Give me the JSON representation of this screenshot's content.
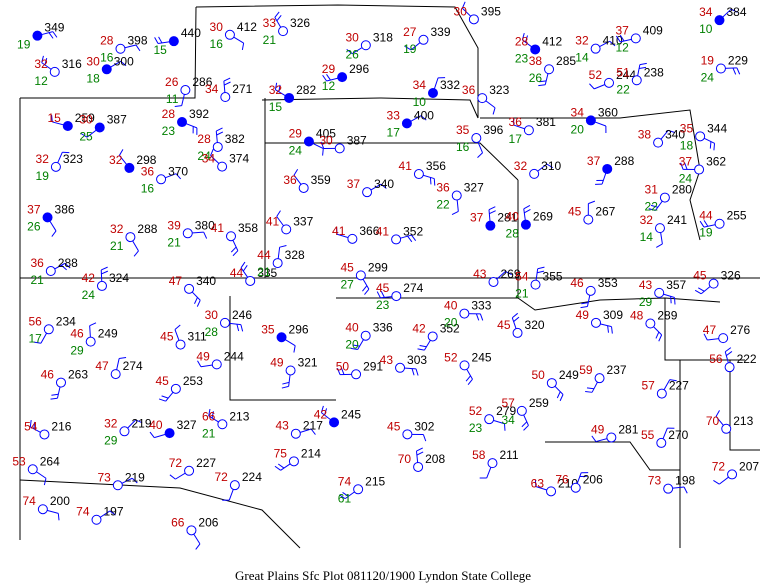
{
  "caption": "Great Plains Sfc Plot 081120/1900  Lyndon State College",
  "colors": {
    "temperature": "#c00000",
    "dewpoint": "#008000",
    "station": "#0000ff",
    "pressure": "#000000",
    "border": "#000000"
  },
  "stations": [
    {
      "p": "349",
      "t": "",
      "td": "19",
      "sky": "full"
    },
    {
      "p": "398",
      "t": "28",
      "td": "16",
      "sky": "empty"
    },
    {
      "p": "440",
      "t": "",
      "td": "15",
      "sky": "full"
    },
    {
      "p": "412",
      "t": "30",
      "td": "16",
      "sky": "empty"
    },
    {
      "p": "326",
      "t": "33",
      "td": "21",
      "sky": "empty"
    },
    {
      "p": "318",
      "t": "30",
      "td": "26",
      "sky": "empty"
    },
    {
      "p": "339",
      "t": "27",
      "td": "19",
      "sky": "empty"
    },
    {
      "p": "395",
      "t": "30",
      "td": "",
      "sky": "empty"
    },
    {
      "p": "412",
      "t": "28",
      "td": "23",
      "sky": "full"
    },
    {
      "p": "410",
      "t": "32",
      "td": "14",
      "sky": "empty"
    },
    {
      "p": "409",
      "t": "37",
      "td": "12",
      "sky": "empty"
    },
    {
      "p": "384",
      "t": "34",
      "td": "10",
      "sky": "full"
    },
    {
      "p": "316",
      "t": "32",
      "td": "12",
      "sky": "empty"
    },
    {
      "p": "300",
      "t": "30",
      "td": "18",
      "sky": "full"
    },
    {
      "p": "286",
      "t": "26",
      "td": "11",
      "sky": "empty"
    },
    {
      "p": "271",
      "t": "34",
      "td": "",
      "sky": "empty"
    },
    {
      "p": "282",
      "t": "32",
      "td": "15",
      "sky": "full"
    },
    {
      "p": "296",
      "t": "29",
      "td": "12",
      "sky": "full"
    },
    {
      "p": "332",
      "t": "34",
      "td": "10",
      "sky": "full"
    },
    {
      "p": "323",
      "t": "36",
      "td": "",
      "sky": "empty"
    },
    {
      "p": "285",
      "t": "38",
      "td": "26",
      "sky": "empty"
    },
    {
      "p": "244",
      "t": "52",
      "td": "",
      "sky": "empty"
    },
    {
      "p": "238",
      "t": "51",
      "td": "22",
      "sky": "empty"
    },
    {
      "p": "229",
      "t": "19",
      "td": "24",
      "sky": "empty"
    },
    {
      "p": "259",
      "t": "15",
      "td": "",
      "sky": "full"
    },
    {
      "p": "387",
      "t": "30",
      "td": "25",
      "sky": "full"
    },
    {
      "p": "392",
      "t": "28",
      "td": "23",
      "sky": "full"
    },
    {
      "p": "382",
      "t": "28",
      "td": "24",
      "sky": "empty"
    },
    {
      "p": "405",
      "t": "29",
      "td": "24",
      "sky": "full"
    },
    {
      "p": "387",
      "t": "30",
      "td": "",
      "sky": "empty"
    },
    {
      "p": "400",
      "t": "33",
      "td": "17",
      "sky": "full"
    },
    {
      "p": "396",
      "t": "35",
      "td": "16",
      "sky": "empty"
    },
    {
      "p": "381",
      "t": "36",
      "td": "17",
      "sky": "empty"
    },
    {
      "p": "360",
      "t": "34",
      "td": "20",
      "sky": "full"
    },
    {
      "p": "340",
      "t": "38",
      "td": "",
      "sky": "empty"
    },
    {
      "p": "344",
      "t": "35",
      "td": "18",
      "sky": "empty"
    },
    {
      "p": "323",
      "t": "32",
      "td": "19",
      "sky": "empty"
    },
    {
      "p": "298",
      "t": "32",
      "td": "",
      "sky": "full"
    },
    {
      "p": "370",
      "t": "36",
      "td": "16",
      "sky": "empty"
    },
    {
      "p": "374",
      "t": "34",
      "td": "",
      "sky": "empty"
    },
    {
      "p": "359",
      "t": "36",
      "td": "",
      "sky": "empty"
    },
    {
      "p": "340",
      "t": "37",
      "td": "",
      "sky": "empty"
    },
    {
      "p": "356",
      "t": "41",
      "td": "",
      "sky": "empty"
    },
    {
      "p": "327",
      "t": "36",
      "td": "22",
      "sky": "empty"
    },
    {
      "p": "310",
      "t": "32",
      "td": "",
      "sky": "empty"
    },
    {
      "p": "288",
      "t": "37",
      "td": "",
      "sky": "full"
    },
    {
      "p": "280",
      "t": "31",
      "td": "22",
      "sky": "empty"
    },
    {
      "p": "362",
      "t": "37",
      "td": "24",
      "sky": "empty"
    },
    {
      "p": "386",
      "t": "37",
      "td": "26",
      "sky": "full"
    },
    {
      "p": "288",
      "t": "32",
      "td": "21",
      "sky": "empty"
    },
    {
      "p": "380",
      "t": "39",
      "td": "21",
      "sky": "empty"
    },
    {
      "p": "358",
      "t": "41",
      "td": "",
      "sky": "empty"
    },
    {
      "p": "337",
      "t": "41",
      "td": "",
      "sky": "empty"
    },
    {
      "p": "366",
      "t": "41",
      "td": "",
      "sky": "empty"
    },
    {
      "p": "352",
      "t": "41",
      "td": "",
      "sky": "empty"
    },
    {
      "p": "281",
      "t": "37",
      "td": "",
      "sky": "full"
    },
    {
      "p": "269",
      "t": "40",
      "td": "28",
      "sky": "full"
    },
    {
      "p": "267",
      "t": "45",
      "td": "",
      "sky": "empty"
    },
    {
      "p": "241",
      "t": "32",
      "td": "14",
      "sky": "empty"
    },
    {
      "p": "255",
      "t": "44",
      "td": "19",
      "sky": "empty"
    },
    {
      "p": "288",
      "t": "36",
      "td": "21",
      "sky": "empty"
    },
    {
      "p": "324",
      "t": "42",
      "td": "24",
      "sky": "empty"
    },
    {
      "p": "340",
      "t": "47",
      "td": "",
      "sky": "empty"
    },
    {
      "p": "335",
      "t": "44",
      "td": "",
      "sky": "empty"
    },
    {
      "p": "328",
      "t": "44",
      "td": "21",
      "sky": "empty"
    },
    {
      "p": "299",
      "t": "45",
      "td": "27",
      "sky": "empty"
    },
    {
      "p": "274",
      "t": "45",
      "td": "23",
      "sky": "empty"
    },
    {
      "p": "269",
      "t": "43",
      "td": "",
      "sky": "empty"
    },
    {
      "p": "355",
      "t": "54",
      "td": "21",
      "sky": "empty"
    },
    {
      "p": "353",
      "t": "46",
      "td": "",
      "sky": "empty"
    },
    {
      "p": "357",
      "t": "43",
      "td": "29",
      "sky": "empty"
    },
    {
      "p": "326",
      "t": "45",
      "td": "",
      "sky": "empty"
    },
    {
      "p": "234",
      "t": "56",
      "td": "17",
      "sky": "empty"
    },
    {
      "p": "249",
      "t": "46",
      "td": "29",
      "sky": "empty"
    },
    {
      "p": "311",
      "t": "45",
      "td": "",
      "sky": "empty"
    },
    {
      "p": "246",
      "t": "30",
      "td": "28",
      "sky": "empty"
    },
    {
      "p": "296",
      "t": "35",
      "td": "",
      "sky": "full"
    },
    {
      "p": "336",
      "t": "40",
      "td": "20",
      "sky": "empty"
    },
    {
      "p": "352",
      "t": "42",
      "td": "",
      "sky": "empty"
    },
    {
      "p": "333",
      "t": "40",
      "td": "20",
      "sky": "empty"
    },
    {
      "p": "320",
      "t": "45",
      "td": "",
      "sky": "empty"
    },
    {
      "p": "309",
      "t": "49",
      "td": "",
      "sky": "empty"
    },
    {
      "p": "289",
      "t": "48",
      "td": "",
      "sky": "empty"
    },
    {
      "p": "276",
      "t": "47",
      "td": "",
      "sky": "empty"
    },
    {
      "p": "263",
      "t": "46",
      "td": "",
      "sky": "empty"
    },
    {
      "p": "274",
      "t": "47",
      "td": "",
      "sky": "empty"
    },
    {
      "p": "253",
      "t": "45",
      "td": "",
      "sky": "empty"
    },
    {
      "p": "244",
      "t": "49",
      "td": "",
      "sky": "empty"
    },
    {
      "p": "321",
      "t": "49",
      "td": "",
      "sky": "empty"
    },
    {
      "p": "291",
      "t": "50",
      "td": "",
      "sky": "empty"
    },
    {
      "p": "303",
      "t": "43",
      "td": "",
      "sky": "empty"
    },
    {
      "p": "245",
      "t": "52",
      "td": "",
      "sky": "empty"
    },
    {
      "p": "249",
      "t": "50",
      "td": "",
      "sky": "empty"
    },
    {
      "p": "237",
      "t": "59",
      "td": "",
      "sky": "empty"
    },
    {
      "p": "227",
      "t": "57",
      "td": "",
      "sky": "empty"
    },
    {
      "p": "222",
      "t": "56",
      "td": "",
      "sky": "empty"
    },
    {
      "p": "216",
      "t": "54",
      "td": "",
      "sky": "empty"
    },
    {
      "p": "219",
      "t": "32",
      "td": "29",
      "sky": "empty"
    },
    {
      "p": "327",
      "t": "40",
      "td": "",
      "sky": "full"
    },
    {
      "p": "213",
      "t": "66",
      "td": "21",
      "sky": "empty"
    },
    {
      "p": "217",
      "t": "43",
      "td": "",
      "sky": "empty"
    },
    {
      "p": "245",
      "t": "42",
      "td": "",
      "sky": "full"
    },
    {
      "p": "302",
      "t": "45",
      "td": "",
      "sky": "empty"
    },
    {
      "p": "279",
      "t": "52",
      "td": "23",
      "sky": "empty"
    },
    {
      "p": "259",
      "t": "57",
      "td": "34",
      "sky": "empty"
    },
    {
      "p": "281",
      "t": "49",
      "td": "",
      "sky": "empty"
    },
    {
      "p": "270",
      "t": "55",
      "td": "",
      "sky": "empty"
    },
    {
      "p": "213",
      "t": "70",
      "td": "",
      "sky": "empty"
    },
    {
      "p": "264",
      "t": "53",
      "td": "",
      "sky": "empty"
    },
    {
      "p": "219",
      "t": "73",
      "td": "",
      "sky": "empty"
    },
    {
      "p": "227",
      "t": "72",
      "td": "",
      "sky": "empty"
    },
    {
      "p": "224",
      "t": "72",
      "td": "",
      "sky": "empty"
    },
    {
      "p": "214",
      "t": "75",
      "td": "",
      "sky": "empty"
    },
    {
      "p": "215",
      "t": "74",
      "td": "61",
      "sky": "empty"
    },
    {
      "p": "208",
      "t": "70",
      "td": "",
      "sky": "empty"
    },
    {
      "p": "211",
      "t": "58",
      "td": "",
      "sky": "empty"
    },
    {
      "p": "210",
      "t": "63",
      "td": "",
      "sky": "empty"
    },
    {
      "p": "206",
      "t": "76",
      "td": "",
      "sky": "empty"
    },
    {
      "p": "198",
      "t": "73",
      "td": "",
      "sky": "empty"
    },
    {
      "p": "207",
      "t": "72",
      "td": "",
      "sky": "empty"
    },
    {
      "p": "200",
      "t": "74",
      "td": "",
      "sky": "empty"
    },
    {
      "p": "197",
      "t": "74",
      "td": "",
      "sky": "empty"
    },
    {
      "p": "206",
      "t": "66",
      "td": "",
      "sky": "empty"
    }
  ]
}
